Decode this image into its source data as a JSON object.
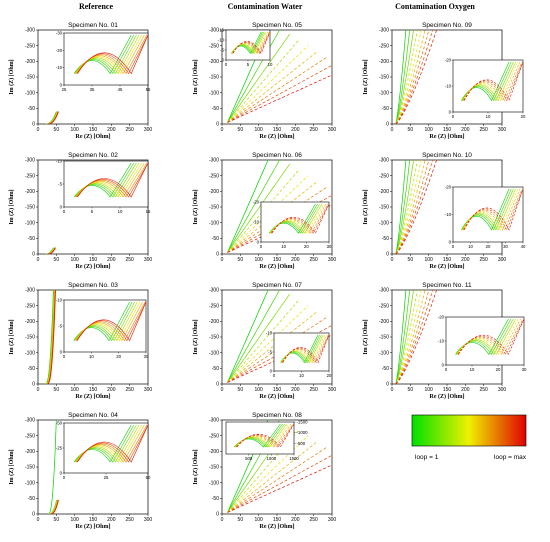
{
  "columns": [
    "Reference",
    "Contamination Water",
    "Contamination Oxygen"
  ],
  "legend": {
    "left": "loop = 1",
    "right": "loop = max",
    "colors": [
      "#00e000",
      "#f0f000",
      "#e00000"
    ]
  },
  "chart_data": [
    {
      "type": "line",
      "title": "Specimen No. 01",
      "xlabel": "Re (Z) [Ohm]",
      "ylabel": "Im (Z) [Ohm]",
      "xlim": [
        0,
        300
      ],
      "ylim": [
        0,
        -300
      ],
      "xticks": [
        0,
        50,
        100,
        150,
        200,
        250,
        300
      ],
      "yticks": [
        0,
        -50,
        -100,
        -150,
        -200,
        -250,
        -300
      ],
      "inset": {
        "xlim": [
          25,
          55
        ],
        "ylim": [
          0,
          -30
        ],
        "xticks": [
          25,
          35,
          45,
          55
        ],
        "yticks": [
          0,
          -10,
          -20,
          -30
        ]
      }
    },
    {
      "type": "line",
      "title": "Specimen No. 02",
      "xlabel": "Re (Z) [Ohm]",
      "ylabel": "Im (Z) [Ohm]",
      "xlim": [
        0,
        300
      ],
      "ylim": [
        0,
        -300
      ],
      "xticks": [
        0,
        50,
        100,
        150,
        200,
        250,
        300
      ],
      "yticks": [
        0,
        -50,
        -100,
        -150,
        -200,
        -250,
        -300
      ],
      "inset": {
        "xlim": [
          0,
          15
        ],
        "ylim": [
          0,
          -10
        ],
        "xticks": [
          0,
          5,
          10,
          15
        ],
        "yticks": [
          0,
          -5,
          -10
        ]
      }
    },
    {
      "type": "line",
      "title": "Specimen No. 03",
      "xlabel": "Re (Z) [Ohm]",
      "ylabel": "Im (Z) [Ohm]",
      "xlim": [
        0,
        300
      ],
      "ylim": [
        0,
        -300
      ],
      "xticks": [
        0,
        50,
        100,
        150,
        200,
        250,
        300
      ],
      "yticks": [
        0,
        -50,
        -100,
        -150,
        -200,
        -250,
        -300
      ],
      "inset": {
        "xlim": [
          0,
          30
        ],
        "ylim": [
          0,
          -10
        ],
        "xticks": [
          0,
          10,
          20,
          30
        ],
        "yticks": [
          0,
          -5,
          -10
        ]
      }
    },
    {
      "type": "line",
      "title": "Specimen No. 04",
      "xlabel": "Re (Z) [Ohm]",
      "ylabel": "Im (Z) [Ohm]",
      "xlim": [
        0,
        300
      ],
      "ylim": [
        0,
        -300
      ],
      "xticks": [
        0,
        50,
        100,
        150,
        200,
        250,
        300
      ],
      "yticks": [
        0,
        -50,
        -100,
        -150,
        -200,
        -250,
        -300
      ],
      "inset": {
        "xlim": [
          0,
          50
        ],
        "ylim": [
          0,
          -50
        ],
        "xticks": [
          0,
          25,
          50
        ],
        "yticks": [
          0,
          -25,
          -50
        ]
      }
    },
    {
      "type": "line",
      "title": "Specimen No. 05",
      "xlabel": "Re (Z) [Ohm]",
      "ylabel": "Im (Z) [Ohm]",
      "xlim": [
        0,
        300
      ],
      "ylim": [
        0,
        -300
      ],
      "xticks": [
        0,
        50,
        100,
        150,
        200,
        250,
        300
      ],
      "yticks": [
        0,
        -50,
        -100,
        -150,
        -200,
        -250,
        -300
      ],
      "inset": {
        "xlim": [
          0,
          10
        ],
        "ylim": [
          0,
          -15
        ],
        "xticks": [
          0,
          5,
          10
        ],
        "yticks": [
          0,
          -5,
          -10,
          -15
        ]
      }
    },
    {
      "type": "line",
      "title": "Specimen No. 06",
      "xlabel": "Re (Z) [Ohm]",
      "ylabel": "Im (Z) [Ohm]",
      "xlim": [
        0,
        300
      ],
      "ylim": [
        0,
        -300
      ],
      "xticks": [
        0,
        50,
        100,
        150,
        200,
        250,
        300
      ],
      "yticks": [
        0,
        -50,
        -100,
        -150,
        -200,
        -250,
        -300
      ],
      "inset": {
        "xlim": [
          0,
          30
        ],
        "ylim": [
          0,
          -20
        ],
        "xticks": [
          0,
          10,
          20,
          30
        ],
        "yticks": [
          0,
          -10,
          -20
        ]
      }
    },
    {
      "type": "line",
      "title": "Specimen No. 07",
      "xlabel": "Re (Z) [Ohm]",
      "ylabel": "Im (Z) [Ohm]",
      "xlim": [
        0,
        300
      ],
      "ylim": [
        0,
        -300
      ],
      "xticks": [
        0,
        50,
        100,
        150,
        200,
        250,
        300
      ],
      "yticks": [
        0,
        -50,
        -100,
        -150,
        -200,
        -250,
        -300
      ],
      "inset": {
        "xlim": [
          0,
          20
        ],
        "ylim": [
          0,
          -10
        ],
        "xticks": [
          0,
          10,
          20
        ],
        "yticks": [
          0,
          -5,
          -10
        ]
      }
    },
    {
      "type": "line",
      "title": "Specimen No. 08",
      "xlabel": "Re (Z) [Ohm]",
      "ylabel": "Im (Z) [Ohm]",
      "xlim": [
        0,
        300
      ],
      "ylim": [
        0,
        -300
      ],
      "xticks": [
        0,
        50,
        100,
        150,
        200,
        250,
        300
      ],
      "yticks": [
        0,
        -50,
        -100,
        -150,
        -200,
        -250,
        -300
      ],
      "inset": {
        "xlim": [
          0,
          1500
        ],
        "ylim": [
          0,
          -1500
        ],
        "xticks": [
          500,
          1000,
          1500
        ],
        "yticks": [
          -500,
          -1000,
          -1500
        ]
      }
    },
    {
      "type": "line",
      "title": "Specimen No. 09",
      "xlabel": "Re (Z) [Ohm]",
      "ylabel": "Im (Z) [Ohm]",
      "xlim": [
        0,
        300
      ],
      "ylim": [
        0,
        -300
      ],
      "xticks": [
        0,
        50,
        100,
        150,
        200,
        250,
        300
      ],
      "yticks": [
        0,
        -50,
        -100,
        -150,
        -200,
        -250,
        -300
      ],
      "inset": {
        "xlim": [
          0,
          20
        ],
        "ylim": [
          0,
          -20
        ],
        "xticks": [
          0,
          10,
          20
        ],
        "yticks": [
          0,
          -10,
          -20
        ]
      }
    },
    {
      "type": "line",
      "title": "Specimen No. 10",
      "xlabel": "Re (Z) [Ohm]",
      "ylabel": "Im (Z) [Ohm]",
      "xlim": [
        0,
        300
      ],
      "ylim": [
        0,
        -300
      ],
      "xticks": [
        0,
        50,
        100,
        150,
        200,
        250,
        300
      ],
      "yticks": [
        0,
        -50,
        -100,
        -150,
        -200,
        -250,
        -300
      ],
      "inset": {
        "xlim": [
          0,
          40
        ],
        "ylim": [
          0,
          -20
        ],
        "xticks": [
          0,
          10,
          20,
          30,
          40
        ],
        "yticks": [
          0,
          -10,
          -20
        ]
      }
    },
    {
      "type": "line",
      "title": "Specimen No. 11",
      "xlabel": "Re (Z) [Ohm]",
      "ylabel": "Im (Z) [Ohm]",
      "xlim": [
        0,
        300
      ],
      "ylim": [
        0,
        -300
      ],
      "xticks": [
        0,
        50,
        100,
        150,
        200,
        250,
        300
      ],
      "yticks": [
        0,
        -50,
        -100,
        -150,
        -200,
        -250,
        -300
      ],
      "inset": {
        "xlim": [
          0,
          30
        ],
        "ylim": [
          0,
          -20
        ],
        "xticks": [
          0,
          10,
          20,
          30
        ],
        "yticks": [
          0,
          -10,
          -20
        ]
      }
    }
  ]
}
